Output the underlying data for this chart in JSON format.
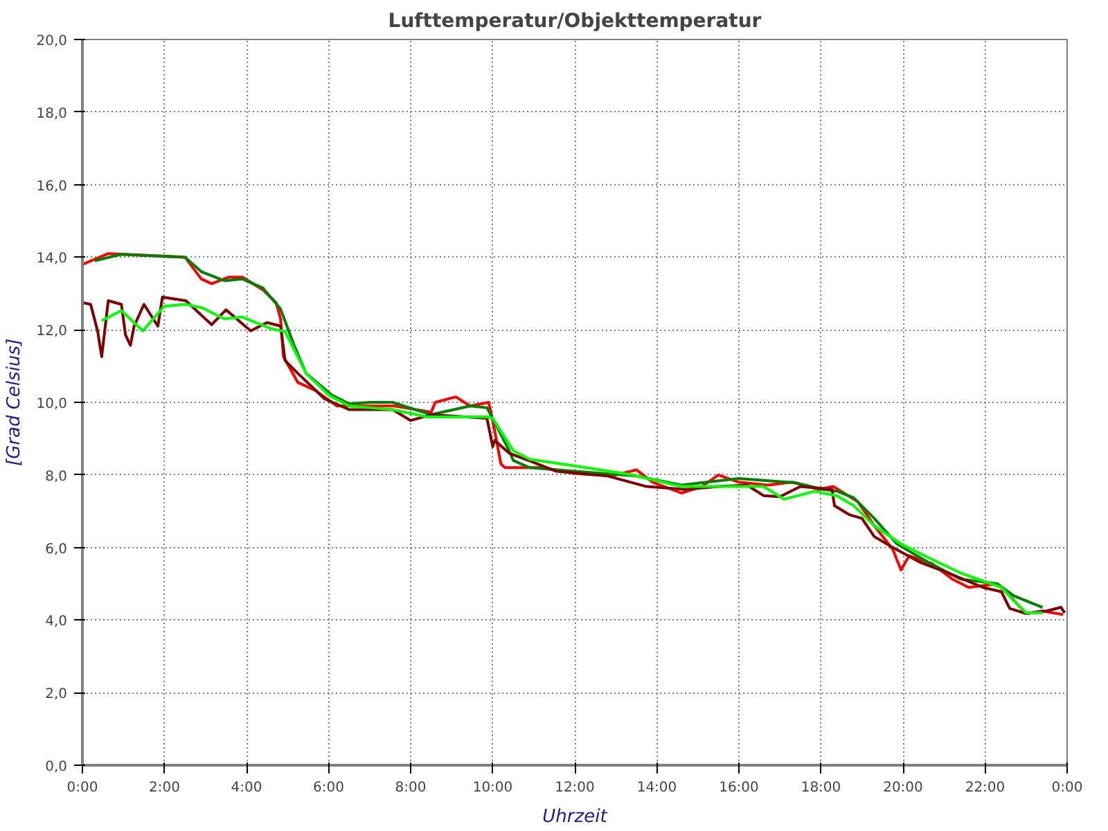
{
  "chart_data": {
    "type": "line",
    "title": "Lufttemperatur/Objekttemperatur",
    "xlabel": "Uhrzeit",
    "ylabel": "[Grad Celsius]",
    "xlim": [
      0,
      24
    ],
    "ylim": [
      0,
      20
    ],
    "xticks": [
      {
        "value": 0,
        "label": "0:00"
      },
      {
        "value": 2,
        "label": "2:00"
      },
      {
        "value": 4,
        "label": "4:00"
      },
      {
        "value": 6,
        "label": "6:00"
      },
      {
        "value": 8,
        "label": "8:00"
      },
      {
        "value": 10,
        "label": "10:00"
      },
      {
        "value": 12,
        "label": "12:00"
      },
      {
        "value": 14,
        "label": "14:00"
      },
      {
        "value": 16,
        "label": "16:00"
      },
      {
        "value": 18,
        "label": "18:00"
      },
      {
        "value": 20,
        "label": "20:00"
      },
      {
        "value": 22,
        "label": "22:00"
      },
      {
        "value": 24,
        "label": "0:00"
      }
    ],
    "yticks": [
      {
        "value": 0,
        "label": "0,0"
      },
      {
        "value": 2,
        "label": "2,0"
      },
      {
        "value": 4,
        "label": "4,0"
      },
      {
        "value": 6,
        "label": "6,0"
      },
      {
        "value": 8,
        "label": "8,0"
      },
      {
        "value": 10,
        "label": "10,0"
      },
      {
        "value": 12,
        "label": "12,0"
      },
      {
        "value": 14,
        "label": "14,0"
      },
      {
        "value": 16,
        "label": "16,0"
      },
      {
        "value": 18,
        "label": "18,0"
      },
      {
        "value": 20,
        "label": "20,0"
      }
    ],
    "grid": true,
    "line_style": "solid",
    "marker": "none",
    "series": [
      {
        "color": "#ff0000",
        "x": [
          0,
          0.63,
          2.5,
          2.9,
          3.15,
          3.57,
          3.9,
          4.4,
          4.72,
          4.83,
          4.9,
          5.25,
          5.67,
          6.2,
          7.6,
          8.5,
          8.6,
          9.1,
          9.45,
          9.9,
          10.0,
          10.2,
          10.3,
          10.7,
          11.2,
          12.0,
          12.9,
          13.5,
          13.9,
          14.6,
          15.1,
          15.5,
          16.0,
          16.7,
          17.3,
          17.95,
          18.3,
          18.9,
          19.3,
          19.75,
          19.95,
          20.15,
          20.7,
          21.2,
          21.6,
          22.3,
          22.6,
          23.0,
          23.4,
          23.9
        ],
        "values": [
          13.8,
          14.1,
          14.0,
          13.4,
          13.27,
          13.45,
          13.45,
          13.1,
          12.75,
          12.3,
          11.26,
          10.55,
          10.33,
          9.9,
          9.9,
          9.73,
          10.0,
          10.15,
          9.9,
          10.0,
          9.5,
          8.3,
          8.2,
          8.2,
          8.2,
          8.04,
          7.97,
          8.14,
          7.8,
          7.5,
          7.68,
          8.0,
          7.8,
          7.72,
          7.8,
          7.6,
          7.68,
          7.26,
          6.6,
          5.95,
          5.38,
          5.77,
          5.56,
          5.13,
          4.9,
          5.0,
          4.67,
          4.18,
          4.25,
          4.15
        ]
      },
      {
        "color": "#008000",
        "x": [
          0.3,
          0.95,
          2.5,
          2.9,
          3.46,
          3.9,
          4.4,
          4.83,
          5.15,
          5.45,
          6.08,
          6.5,
          7.03,
          7.56,
          8.5,
          9.45,
          9.86,
          10.08,
          10.4,
          10.5,
          10.9,
          12.0,
          13.5,
          14.6,
          16.0,
          17.4,
          18.05,
          18.4,
          18.8,
          19.3,
          19.85,
          20.6,
          21.4,
          22.3,
          22.7,
          23.4
        ],
        "values": [
          13.9,
          14.08,
          14.0,
          13.6,
          13.35,
          13.4,
          13.15,
          12.57,
          11.6,
          10.8,
          10.2,
          9.96,
          10.0,
          10.0,
          9.66,
          9.9,
          9.85,
          9.38,
          8.67,
          8.4,
          8.2,
          8.1,
          7.97,
          7.72,
          7.9,
          7.78,
          7.6,
          7.55,
          7.37,
          6.8,
          6.1,
          5.6,
          5.13,
          5.0,
          4.67,
          4.35
        ]
      },
      {
        "color": "#800000",
        "x": [
          0,
          0.2,
          0.37,
          0.47,
          0.63,
          0.95,
          1.05,
          1.17,
          1.26,
          1.5,
          1.84,
          1.95,
          2.52,
          3.15,
          3.5,
          4.1,
          4.5,
          4.83,
          4.94,
          5.25,
          5.9,
          6.3,
          6.5,
          7.56,
          8.0,
          8.5,
          9.86,
          10.0,
          10.05,
          10.4,
          10.8,
          11.55,
          12.8,
          13.75,
          14.7,
          15.5,
          16.2,
          16.6,
          17.0,
          17.5,
          18.27,
          18.33,
          18.7,
          19.0,
          19.3,
          19.75,
          20.4,
          21.1,
          21.95,
          22.4,
          22.6,
          23.0,
          23.5,
          23.85,
          23.94
        ],
        "values": [
          12.75,
          12.7,
          11.97,
          11.26,
          12.8,
          12.7,
          11.86,
          11.57,
          12.1,
          12.7,
          12.1,
          12.9,
          12.8,
          12.14,
          12.55,
          11.97,
          12.2,
          12.1,
          11.15,
          10.8,
          10.1,
          9.9,
          9.8,
          9.8,
          9.5,
          9.66,
          9.56,
          8.78,
          8.95,
          8.6,
          8.43,
          8.1,
          7.97,
          7.68,
          7.6,
          7.68,
          7.72,
          7.43,
          7.4,
          7.68,
          7.6,
          7.15,
          6.9,
          6.8,
          6.3,
          6.0,
          5.6,
          5.3,
          4.9,
          4.78,
          4.32,
          4.18,
          4.25,
          4.35,
          4.2
        ]
      },
      {
        "color": "#00ff00",
        "x": [
          0.47,
          0.95,
          1.47,
          2.0,
          2.52,
          2.93,
          3.46,
          3.9,
          4.6,
          4.94,
          5.45,
          6.0,
          6.5,
          7.56,
          8.4,
          8.7,
          9.86,
          10.0,
          10.5,
          10.9,
          12.0,
          13.4,
          14.6,
          16.0,
          16.6,
          17.1,
          17.85,
          18.4,
          18.8,
          19.3,
          19.95,
          20.6,
          21.4,
          22.4,
          22.7,
          23.0,
          23.4
        ],
        "values": [
          12.25,
          12.53,
          11.97,
          12.65,
          12.7,
          12.6,
          12.3,
          12.35,
          12.03,
          11.95,
          10.8,
          10.2,
          9.9,
          9.8,
          9.6,
          9.6,
          9.6,
          9.56,
          8.67,
          8.43,
          8.25,
          8.0,
          7.68,
          7.68,
          7.68,
          7.33,
          7.55,
          7.42,
          7.15,
          6.6,
          6.1,
          5.73,
          5.3,
          4.9,
          4.53,
          4.2,
          4.2
        ]
      }
    ]
  }
}
